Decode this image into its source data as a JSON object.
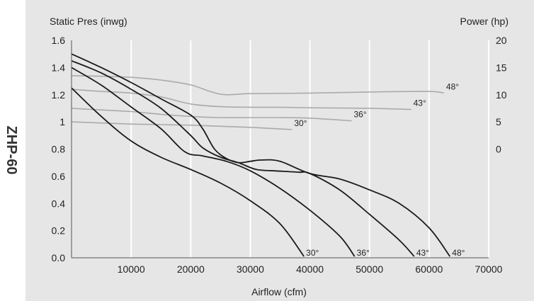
{
  "side_label": "ZHP-60",
  "chart_data": {
    "type": "line",
    "title": "",
    "xlabel": "Airflow (cfm)",
    "ylabel": "Static Pres (inwg)",
    "y2label": "Power (hp)",
    "xlim": [
      0,
      70000
    ],
    "ylim": [
      0,
      1.6
    ],
    "y2lim": [
      0,
      20
    ],
    "x_ticks": [
      10000,
      20000,
      30000,
      40000,
      50000,
      60000,
      70000
    ],
    "y_ticks": [
      {
        "v": 0.0,
        "label": "0.0"
      },
      {
        "v": 0.2,
        "label": "0.2"
      },
      {
        "v": 0.4,
        "label": "0.4"
      },
      {
        "v": 0.6,
        "label": "0.6"
      },
      {
        "v": 0.8,
        "label": "0.8"
      },
      {
        "v": 1.0,
        "label": "1"
      },
      {
        "v": 1.2,
        "label": "1.2"
      },
      {
        "v": 1.4,
        "label": "1.4"
      },
      {
        "v": 1.6,
        "label": "1.6"
      }
    ],
    "y2_ticks": [
      0,
      5,
      10,
      15,
      20
    ],
    "grid": "vertical",
    "colors": {
      "plot_background": "#e6e6e6",
      "grid": "#ffffff",
      "pressure_curve": "#1a1a1a",
      "power_curve": "#aaaaaa",
      "text": "#222222"
    },
    "pressure_series": [
      {
        "name": "30°",
        "points": [
          [
            0,
            1.25
          ],
          [
            5000,
            1.04
          ],
          [
            10000,
            0.86
          ],
          [
            15000,
            0.74
          ],
          [
            20000,
            0.65
          ],
          [
            25000,
            0.55
          ],
          [
            30000,
            0.42
          ],
          [
            35000,
            0.25
          ],
          [
            39000,
            0.01
          ]
        ]
      },
      {
        "name": "36°",
        "points": [
          [
            0,
            1.4
          ],
          [
            5000,
            1.27
          ],
          [
            10000,
            1.11
          ],
          [
            15000,
            0.95
          ],
          [
            19000,
            0.78
          ],
          [
            22000,
            0.75
          ],
          [
            26000,
            0.71
          ],
          [
            30000,
            0.64
          ],
          [
            35000,
            0.51
          ],
          [
            40000,
            0.35
          ],
          [
            45000,
            0.16
          ],
          [
            47500,
            0.01
          ]
        ]
      },
      {
        "name": "43°",
        "points": [
          [
            0,
            1.45
          ],
          [
            5000,
            1.36
          ],
          [
            10000,
            1.24
          ],
          [
            15000,
            1.1
          ],
          [
            20000,
            0.9
          ],
          [
            22000,
            0.81
          ],
          [
            25000,
            0.74
          ],
          [
            28000,
            0.7
          ],
          [
            31000,
            0.65
          ],
          [
            34000,
            0.64
          ],
          [
            38000,
            0.63
          ],
          [
            40000,
            0.62
          ],
          [
            45000,
            0.5
          ],
          [
            50000,
            0.32
          ],
          [
            55000,
            0.13
          ],
          [
            57500,
            0.01
          ]
        ]
      },
      {
        "name": "48°",
        "points": [
          [
            0,
            1.5
          ],
          [
            5000,
            1.4
          ],
          [
            10000,
            1.29
          ],
          [
            15000,
            1.17
          ],
          [
            20000,
            1.05
          ],
          [
            22000,
            0.95
          ],
          [
            24000,
            0.8
          ],
          [
            26000,
            0.73
          ],
          [
            28000,
            0.7
          ],
          [
            30000,
            0.71
          ],
          [
            32000,
            0.72
          ],
          [
            35000,
            0.71
          ],
          [
            40000,
            0.62
          ],
          [
            45000,
            0.58
          ],
          [
            50000,
            0.5
          ],
          [
            55000,
            0.4
          ],
          [
            60000,
            0.22
          ],
          [
            63500,
            0.01
          ]
        ]
      }
    ],
    "power_series": [
      {
        "name": "30°",
        "points": [
          [
            0,
            5
          ],
          [
            5000,
            4.8
          ],
          [
            10000,
            4.6
          ],
          [
            15000,
            4.5
          ],
          [
            20000,
            4.4
          ],
          [
            25000,
            4.2
          ],
          [
            30000,
            4.0
          ],
          [
            35000,
            3.7
          ],
          [
            37000,
            3.6
          ]
        ]
      },
      {
        "name": "36°",
        "points": [
          [
            0,
            7.5
          ],
          [
            5000,
            7.2
          ],
          [
            10000,
            6.9
          ],
          [
            15000,
            6.4
          ],
          [
            20000,
            6.0
          ],
          [
            25000,
            5.8
          ],
          [
            30000,
            5.8
          ],
          [
            35000,
            5.8
          ],
          [
            40000,
            5.7
          ],
          [
            47000,
            5.2
          ]
        ]
      },
      {
        "name": "43°",
        "points": [
          [
            0,
            11
          ],
          [
            5000,
            10.6
          ],
          [
            10000,
            10.3
          ],
          [
            15000,
            9.6
          ],
          [
            20000,
            8.3
          ],
          [
            25000,
            7.8
          ],
          [
            30000,
            7.7
          ],
          [
            35000,
            7.7
          ],
          [
            40000,
            7.6
          ],
          [
            50000,
            7.5
          ],
          [
            57000,
            7.3
          ]
        ]
      },
      {
        "name": "48°",
        "points": [
          [
            0,
            13.5
          ],
          [
            5000,
            13.4
          ],
          [
            10000,
            13.2
          ],
          [
            15000,
            12.7
          ],
          [
            20000,
            11.8
          ],
          [
            25000,
            10.1
          ],
          [
            30000,
            10.2
          ],
          [
            40000,
            10.3
          ],
          [
            50000,
            10.5
          ],
          [
            60000,
            10.6
          ],
          [
            62500,
            10.3
          ]
        ]
      }
    ]
  }
}
